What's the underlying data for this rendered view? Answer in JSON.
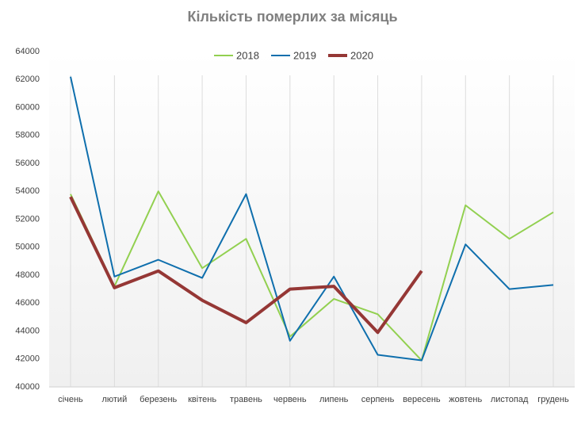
{
  "chart_data": {
    "type": "line",
    "title": "Кількість померлих за місяць",
    "categories": [
      "січень",
      "лютий",
      "березень",
      "квітень",
      "травень",
      "червень",
      "липень",
      "серпень",
      "вересень",
      "жовтень",
      "листопад",
      "грудень"
    ],
    "series": [
      {
        "name": "2018",
        "color": "#92d050",
        "values": [
          53800,
          47200,
          54000,
          48500,
          50600,
          43600,
          46300,
          45200,
          41900,
          53000,
          50600,
          52500
        ]
      },
      {
        "name": "2019",
        "color": "#0f6fad",
        "values": [
          62200,
          47900,
          49100,
          47800,
          53800,
          43300,
          47900,
          42300,
          41900,
          50200,
          47000,
          47300
        ]
      },
      {
        "name": "2020",
        "color": "#953735",
        "values": [
          53600,
          47100,
          48300,
          46200,
          44600,
          47000,
          47200,
          43900,
          48300,
          null,
          null,
          null
        ]
      }
    ],
    "ylim": [
      40000,
      64000
    ],
    "yticks": [
      40000,
      42000,
      44000,
      46000,
      48000,
      50000,
      52000,
      54000,
      56000,
      58000,
      60000,
      62000,
      64000
    ],
    "grid": "x",
    "legend": "top"
  }
}
